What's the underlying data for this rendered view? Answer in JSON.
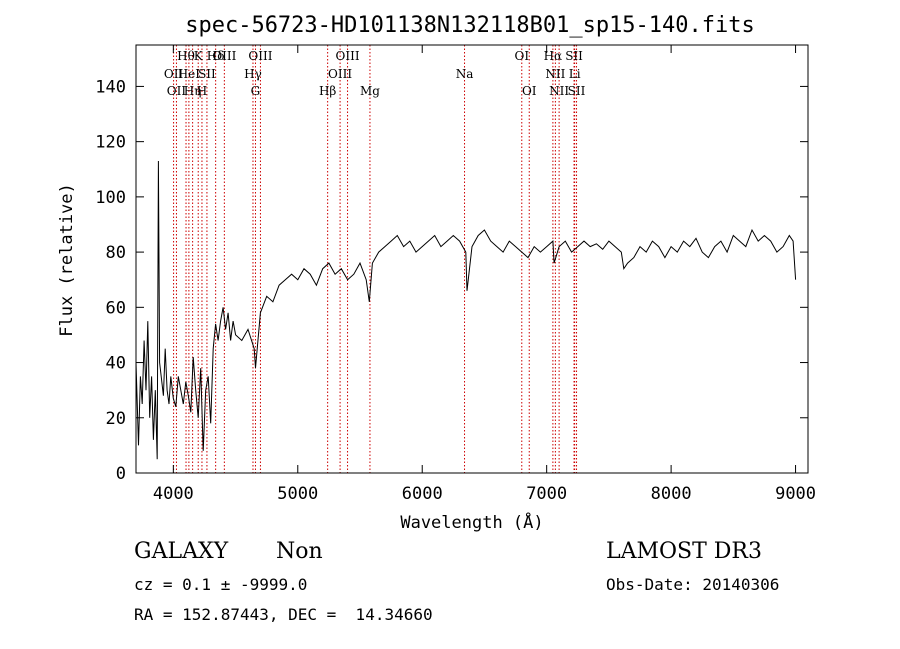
{
  "chart_data": {
    "type": "line",
    "title": "spec-56723-HD101138N132118B01_sp15-140.fits",
    "xlabel": "Wavelength (Å)",
    "ylabel": "Flux (relative)",
    "xlim": [
      3700,
      9100
    ],
    "ylim": [
      0,
      155
    ],
    "x_ticks": [
      4000,
      5000,
      6000,
      7000,
      8000,
      9000
    ],
    "y_ticks": [
      0,
      20,
      40,
      60,
      80,
      100,
      120,
      140
    ],
    "grid": false,
    "legend": "none",
    "line_color": "#000000",
    "series": [
      {
        "x": [
          3700,
          3720,
          3735,
          3750,
          3765,
          3780,
          3795,
          3810,
          3825,
          3840,
          3855,
          3870,
          3880,
          3890,
          3905,
          3920,
          3935,
          3950,
          3965,
          3980,
          4000,
          4020,
          4040,
          4060,
          4080,
          4100,
          4120,
          4140,
          4160,
          4180,
          4200,
          4220,
          4240,
          4260,
          4280,
          4300,
          4320,
          4340,
          4360,
          4380,
          4400,
          4420,
          4440,
          4460,
          4480,
          4500,
          4550,
          4600,
          4650,
          4660,
          4700,
          4750,
          4800,
          4850,
          4900,
          4950,
          5000,
          5050,
          5100,
          5150,
          5200,
          5250,
          5300,
          5350,
          5400,
          5450,
          5500,
          5550,
          5575,
          5600,
          5650,
          5700,
          5750,
          5800,
          5850,
          5900,
          5950,
          6000,
          6050,
          6100,
          6150,
          6200,
          6250,
          6300,
          6350,
          6360,
          6400,
          6450,
          6500,
          6550,
          6600,
          6650,
          6700,
          6750,
          6800,
          6850,
          6900,
          6950,
          7000,
          7050,
          7060,
          7100,
          7150,
          7200,
          7250,
          7300,
          7350,
          7400,
          7450,
          7500,
          7550,
          7600,
          7620,
          7650,
          7700,
          7750,
          7800,
          7850,
          7900,
          7950,
          8000,
          8050,
          8100,
          8150,
          8200,
          8250,
          8300,
          8350,
          8400,
          8450,
          8500,
          8550,
          8600,
          8650,
          8700,
          8750,
          8800,
          8850,
          8900,
          8950,
          8980,
          9000
        ],
        "y": [
          40,
          10,
          35,
          25,
          48,
          30,
          55,
          20,
          35,
          12,
          30,
          5,
          113,
          40,
          34,
          28,
          45,
          30,
          25,
          35,
          27,
          24,
          35,
          30,
          25,
          33,
          28,
          22,
          42,
          30,
          20,
          38,
          8,
          30,
          35,
          18,
          45,
          54,
          48,
          55,
          60,
          52,
          58,
          48,
          55,
          50,
          48,
          52,
          45,
          38,
          58,
          64,
          62,
          68,
          70,
          72,
          70,
          74,
          72,
          68,
          74,
          76,
          72,
          74,
          70,
          72,
          76,
          70,
          62,
          76,
          80,
          82,
          84,
          86,
          82,
          84,
          80,
          82,
          84,
          86,
          82,
          84,
          86,
          84,
          80,
          66,
          82,
          86,
          88,
          84,
          82,
          80,
          84,
          82,
          80,
          78,
          82,
          80,
          82,
          84,
          76,
          82,
          84,
          80,
          82,
          84,
          82,
          83,
          81,
          84,
          82,
          80,
          74,
          76,
          78,
          82,
          80,
          84,
          82,
          78,
          82,
          80,
          84,
          82,
          85,
          80,
          78,
          82,
          84,
          80,
          86,
          84,
          82,
          88,
          84,
          86,
          84,
          80,
          82,
          86,
          84,
          70
        ]
      }
    ],
    "line_color_markers": "#cc0000",
    "line_markers": [
      {
        "x": 4002,
        "label": "OII",
        "row": 2
      },
      {
        "x": 4025,
        "label": "OII",
        "row": 3
      },
      {
        "x": 4102,
        "label": "Hθ",
        "row": 1
      },
      {
        "x": 4125,
        "label": "HeI",
        "row": 2
      },
      {
        "x": 4155,
        "label": "Hη",
        "row": 3
      },
      {
        "x": 4200,
        "label": "K",
        "row": 1
      },
      {
        "x": 4230,
        "label": "H",
        "row": 3
      },
      {
        "x": 4270,
        "label": "SII",
        "row": 2
      },
      {
        "x": 4340,
        "label": "Hδ",
        "row": 1
      },
      {
        "x": 4410,
        "label": "OIII",
        "row": 1
      },
      {
        "x": 4640,
        "label": "Hγ",
        "row": 2
      },
      {
        "x": 4660,
        "label": "G",
        "row": 3
      },
      {
        "x": 4700,
        "label": "OIII",
        "row": 1
      },
      {
        "x": 5240,
        "label": "Hβ",
        "row": 3
      },
      {
        "x": 5340,
        "label": "OIII",
        "row": 2
      },
      {
        "x": 5400,
        "label": "OIII",
        "row": 1
      },
      {
        "x": 5580,
        "label": "Mg",
        "row": 3
      },
      {
        "x": 6340,
        "label": "Na",
        "row": 2
      },
      {
        "x": 6800,
        "label": "OI",
        "row": 1
      },
      {
        "x": 6860,
        "label": "OI",
        "row": 3
      },
      {
        "x": 7050,
        "label": "Hα",
        "row": 1
      },
      {
        "x": 7070,
        "label": "NII",
        "row": 2
      },
      {
        "x": 7100,
        "label": "NII",
        "row": 3
      },
      {
        "x": 7220,
        "label": "SII",
        "row": 1
      },
      {
        "x": 7225,
        "label": "Li",
        "row": 2
      },
      {
        "x": 7240,
        "label": "SII",
        "row": 3
      }
    ]
  },
  "info": {
    "object_class": "GALAXY",
    "subclass": "Non",
    "survey": "LAMOST DR3",
    "cz_line": "cz = 0.1 ± -9999.0",
    "obs_date": "Obs-Date: 20140306",
    "radec_line": "RA = 152.87443, DEC =  14.34660"
  }
}
